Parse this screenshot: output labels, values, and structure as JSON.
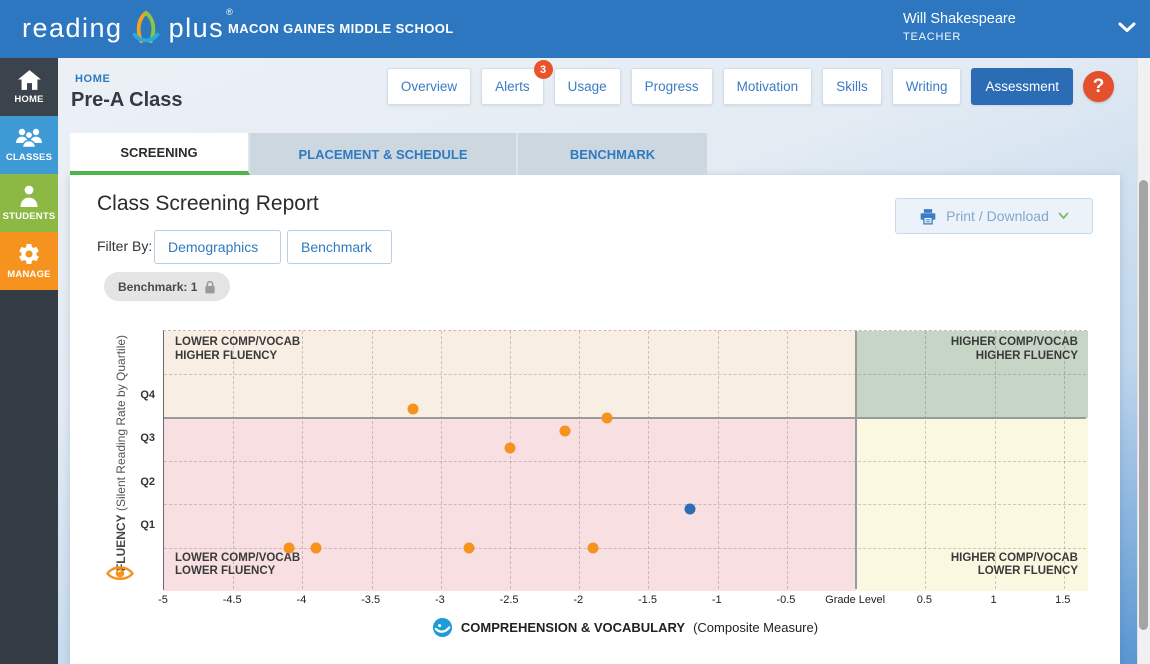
{
  "header": {
    "logo_text_1": "reading",
    "logo_text_2": "plus",
    "logo_reg": "®",
    "school_name": "MACON GAINES MIDDLE SCHOOL",
    "user_name": "Will Shakespeare",
    "user_role": "TEACHER"
  },
  "sidebar": {
    "items": [
      {
        "label": "HOME",
        "color": "#3b434c"
      },
      {
        "label": "CLASSES",
        "color": "#3e9ad5"
      },
      {
        "label": "STUDENTS",
        "color": "#8cb844"
      },
      {
        "label": "MANAGE",
        "color": "#f6921e"
      }
    ]
  },
  "breadcrumb": "HOME",
  "page_title": "Pre-A Class",
  "nav": {
    "items": [
      {
        "label": "Overview"
      },
      {
        "label": "Alerts",
        "badge": "3"
      },
      {
        "label": "Usage"
      },
      {
        "label": "Progress"
      },
      {
        "label": "Motivation"
      },
      {
        "label": "Skills"
      },
      {
        "label": "Writing"
      },
      {
        "label": "Assessment",
        "active": true
      }
    ],
    "help_label": "?"
  },
  "tabs": [
    {
      "label": "SCREENING",
      "active": true
    },
    {
      "label": "PLACEMENT & SCHEDULE"
    },
    {
      "label": "BENCHMARK"
    }
  ],
  "report": {
    "title": "Class Screening Report",
    "filter_by_label": "Filter By:",
    "filters": [
      {
        "label": "Demographics"
      },
      {
        "label": "Benchmark"
      }
    ],
    "benchmark_pill": "Benchmark: 1",
    "print_button": "Print / Download"
  },
  "chart_data": {
    "type": "scatter",
    "x_axis": {
      "title_bold": "COMPREHENSION & VOCABULARY",
      "title_rest": "(Composite Measure)",
      "range": [
        -5,
        1.675
      ],
      "ticks": [
        {
          "v": -5,
          "label": "-5"
        },
        {
          "v": -4.5,
          "label": "-4.5"
        },
        {
          "v": -4,
          "label": "-4"
        },
        {
          "v": -3.5,
          "label": "-3.5"
        },
        {
          "v": -3,
          "label": "-3"
        },
        {
          "v": -2.5,
          "label": "-2.5"
        },
        {
          "v": -2,
          "label": "-2"
        },
        {
          "v": -1.5,
          "label": "-1.5"
        },
        {
          "v": -1,
          "label": "-1"
        },
        {
          "v": -0.5,
          "label": "-0.5"
        },
        {
          "v": 0,
          "label": "Grade Level"
        },
        {
          "v": 0.5,
          "label": "0.5"
        },
        {
          "v": 1,
          "label": "1"
        },
        {
          "v": 1.5,
          "label": "1.5"
        }
      ]
    },
    "y_axis": {
      "title_bold": "FLUENCY",
      "title_rest": "(Silent Reading Rate by Quartile)",
      "range_units": [
        0,
        6
      ],
      "gridline_units": [
        1,
        2,
        3,
        5
      ],
      "ticks": [
        {
          "u": 4.5,
          "label": "Q4"
        },
        {
          "u": 3.5,
          "label": "Q3"
        },
        {
          "u": 2.5,
          "label": "Q2"
        },
        {
          "u": 1.5,
          "label": "Q1"
        }
      ]
    },
    "boundaries": {
      "x": 0,
      "y_unit": 4,
      "color": "#9a9a9a"
    },
    "quadrants": {
      "top_left": {
        "line1": "LOWER COMP/VOCAB",
        "line2": "HIGHER FLUENCY",
        "bg": "#f9eee3"
      },
      "top_right": {
        "line1": "HIGHER COMP/VOCAB",
        "line2": "HIGHER FLUENCY",
        "bg": "#c6d5c5"
      },
      "bottom_left": {
        "line1": "LOWER COMP/VOCAB",
        "line2": "LOWER FLUENCY",
        "bg": "#f8e0e2"
      },
      "bottom_right": {
        "line1": "HIGHER COMP/VOCAB",
        "line2": "LOWER FLUENCY",
        "bg": "#fbf8e1"
      }
    },
    "series": [
      {
        "name": "students-orange",
        "color": "#f6921e",
        "points": [
          {
            "x": -4.1,
            "y": 1.0
          },
          {
            "x": -3.9,
            "y": 1.0
          },
          {
            "x": -2.8,
            "y": 1.0
          },
          {
            "x": -1.9,
            "y": 1.0
          },
          {
            "x": -2.5,
            "y": 3.3
          },
          {
            "x": -2.1,
            "y": 3.7
          },
          {
            "x": -1.8,
            "y": 4.0
          },
          {
            "x": -3.2,
            "y": 4.2
          }
        ]
      },
      {
        "name": "students-blue",
        "color": "#2e6db5",
        "points": [
          {
            "x": -1.2,
            "y": 1.9
          }
        ]
      }
    ],
    "grid": "dashed"
  }
}
